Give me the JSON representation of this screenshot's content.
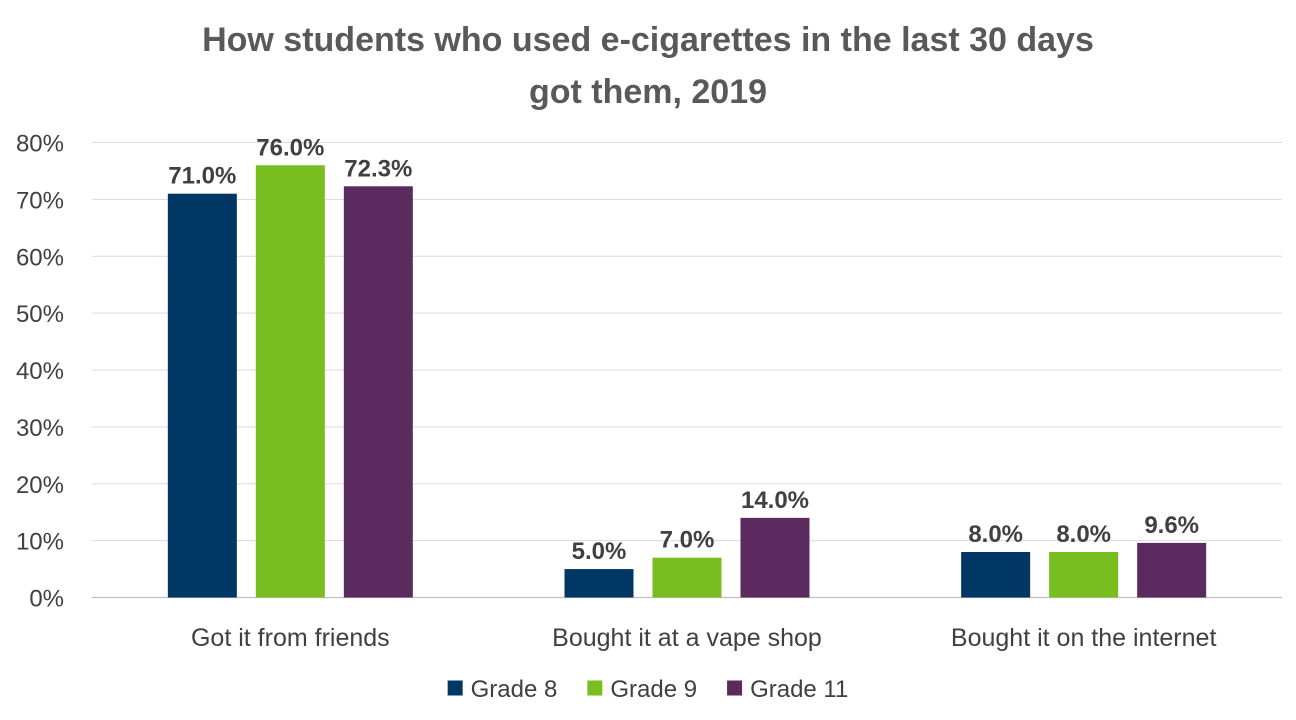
{
  "chart_data": {
    "type": "bar",
    "title_lines": [
      "How students who used e-cigarettes in the last 30 days",
      "got them, 2019"
    ],
    "categories": [
      "Got it from friends",
      "Bought it at a vape shop",
      "Bought it on the internet"
    ],
    "series": [
      {
        "name": "Grade 8",
        "color": "#003764",
        "values": [
          71.0,
          5.0,
          8.0
        ]
      },
      {
        "name": "Grade 9",
        "color": "#78be20",
        "values": [
          76.0,
          7.0,
          8.0
        ]
      },
      {
        "name": "Grade 11",
        "color": "#5b2a5e",
        "values": [
          72.3,
          14.0,
          9.6
        ]
      }
    ],
    "data_labels": [
      [
        "71.0%",
        "5.0%",
        "8.0%"
      ],
      [
        "76.0%",
        "7.0%",
        "8.0%"
      ],
      [
        "72.3%",
        "14.0%",
        "9.6%"
      ]
    ],
    "y_ticks": [
      0,
      10,
      20,
      30,
      40,
      50,
      60,
      70,
      80
    ],
    "y_tick_labels": [
      "0%",
      "10%",
      "20%",
      "30%",
      "40%",
      "50%",
      "60%",
      "70%",
      "80%"
    ],
    "ylim": [
      0,
      80
    ],
    "grid": true,
    "legend_position": "bottom"
  }
}
